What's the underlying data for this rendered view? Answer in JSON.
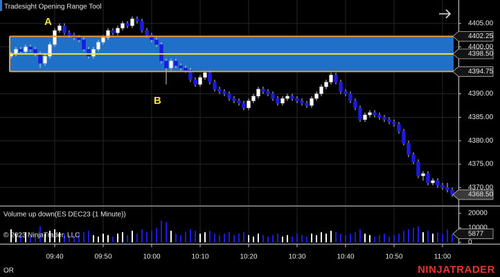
{
  "header": {
    "title": "Tradesight Opening Range Tool"
  },
  "chart_data": [
    {
      "type": "candlestick",
      "open": [
        4398,
        4398.5,
        4399.5,
        4399,
        4400,
        4399.5,
        4398.5,
        4396.5,
        4398,
        4400.5,
        4403.5,
        4404.5,
        4403,
        4402.5,
        4402,
        4401.5,
        4399.5,
        4398,
        4399.5,
        4401,
        4402,
        4403.5,
        4403,
        4404,
        4405,
        4404.5,
        4406,
        4405.5,
        4403.5,
        4402.5,
        4401.5,
        4400.5,
        4397,
        4395.5,
        4397,
        4396,
        4395.5,
        4395,
        4393,
        4392,
        4393.5,
        4394.5,
        4392.5,
        4391,
        4390.5,
        4390,
        4389,
        4388.5,
        4388,
        4387,
        4388.5,
        4389.5,
        4391,
        4390.5,
        4390,
        4389,
        4388,
        4389,
        4389.5,
        4389,
        4388.5,
        4388,
        4387.5,
        4389,
        4390,
        4391.5,
        4392.5,
        4394,
        4392.5,
        4390.5,
        4390,
        4388.5,
        4387,
        4384.5,
        4385.5,
        4386,
        4385.5,
        4385,
        4384.5,
        4384,
        4383.5,
        4382,
        4379.5,
        4377,
        4375.5,
        4372.5,
        4373,
        4371,
        4371.5,
        4370.5,
        4370,
        4369.5
      ],
      "high": [
        4399,
        4400,
        4400,
        4400.5,
        4400.5,
        4400,
        4399,
        4398.5,
        4401,
        4404,
        4405,
        4405,
        4403.5,
        4403,
        4402.5,
        4402,
        4400,
        4400,
        4401.5,
        4402.5,
        4404,
        4404,
        4404.5,
        4405.5,
        4405.5,
        4406.5,
        4406.5,
        4406,
        4404,
        4403,
        4402,
        4401,
        4397.5,
        4397.5,
        4397.5,
        4396.5,
        4396,
        4395.5,
        4393.5,
        4394,
        4395,
        4395,
        4393,
        4391.5,
        4391,
        4390.5,
        4389.5,
        4389,
        4388.5,
        4389,
        4390,
        4391.5,
        4391.5,
        4391,
        4390.5,
        4389.5,
        4389.5,
        4390,
        4390,
        4389.5,
        4389,
        4388.5,
        4389.5,
        4390.5,
        4392,
        4393,
        4394.5,
        4394.5,
        4393,
        4391,
        4390.5,
        4389,
        4387.5,
        4386,
        4386.5,
        4386.5,
        4386,
        4385.5,
        4385,
        4384.5,
        4384,
        4382.5,
        4380,
        4377.5,
        4376,
        4373.5,
        4373.5,
        4372,
        4372,
        4371,
        4371,
        4370
      ],
      "low": [
        4397.5,
        4398,
        4398.5,
        4398.5,
        4399,
        4398,
        4395.5,
        4396,
        4397.5,
        4400,
        4403,
        4402.5,
        4402,
        4401.5,
        4401,
        4399,
        4397.5,
        4397.5,
        4399,
        4400.5,
        4401.5,
        4402.5,
        4402.5,
        4403.5,
        4404,
        4404,
        4405,
        4403,
        4402,
        4401,
        4400,
        4396.5,
        4392,
        4395,
        4395.5,
        4395,
        4394.5,
        4392.5,
        4391.5,
        4391.5,
        4393,
        4392,
        4390.5,
        4390,
        4389.5,
        4388.5,
        4388,
        4387.5,
        4386.5,
        4386.5,
        4388,
        4389,
        4390,
        4389.5,
        4388.5,
        4387.5,
        4387.5,
        4388.5,
        4388.5,
        4388,
        4387.5,
        4387,
        4387,
        4388.5,
        4389.5,
        4391,
        4392,
        4392,
        4390,
        4389.5,
        4388,
        4386.5,
        4384,
        4384,
        4385,
        4385,
        4384.5,
        4384,
        4383.5,
        4383,
        4381.5,
        4379,
        4376.5,
        4375,
        4372,
        4371.5,
        4370.5,
        4370.5,
        4370,
        4369.5,
        4369,
        4368
      ],
      "close": [
        4398.5,
        4399.5,
        4399,
        4400,
        4399.5,
        4398.5,
        4396.5,
        4398,
        4400.5,
        4403.5,
        4404.5,
        4403,
        4402.5,
        4402,
        4401.5,
        4399.5,
        4398,
        4399.5,
        4401,
        4402,
        4403.5,
        4403,
        4404,
        4405,
        4404.5,
        4406,
        4405.5,
        4403.5,
        4402.5,
        4401.5,
        4400.5,
        4397,
        4395.5,
        4397,
        4396,
        4395.5,
        4395,
        4393,
        4392,
        4393.5,
        4394.5,
        4392.5,
        4391,
        4390.5,
        4390,
        4389,
        4388.5,
        4388,
        4387,
        4388.5,
        4389.5,
        4391,
        4390.5,
        4390,
        4389,
        4388,
        4389,
        4389.5,
        4389,
        4388.5,
        4388,
        4387.5,
        4389,
        4390,
        4391.5,
        4392.5,
        4394,
        4392.5,
        4390.5,
        4390,
        4388.5,
        4387,
        4384.5,
        4385.5,
        4386,
        4385.5,
        4385,
        4384.5,
        4384,
        4383.5,
        4382,
        4379.5,
        4377,
        4375.5,
        4372.5,
        4373,
        4371,
        4371.5,
        4370.5,
        4370,
        4369.5,
        4368.5
      ],
      "up_color": "#ffffff",
      "down_color": "#1a1ae0",
      "wick_color": "#cfcfcf",
      "ylim": [
        4366.15,
        4410.0
      ],
      "yticks": [
        {
          "value": 4405,
          "label": "4405.00"
        },
        {
          "value": 4400,
          "label": "4400.00"
        },
        {
          "value": 4390,
          "label": "4390.00"
        },
        {
          "value": 4385,
          "label": "4385.00"
        },
        {
          "value": 4380,
          "label": "4380.00"
        },
        {
          "value": 4375,
          "label": "4375.00"
        },
        {
          "value": 4370,
          "label": "4370.00"
        }
      ],
      "xticks": [
        {
          "value": 9,
          "label": "09:40"
        },
        {
          "value": 19,
          "label": "09:50"
        },
        {
          "value": 29,
          "label": "10:00"
        },
        {
          "value": 39,
          "label": "10:10"
        },
        {
          "value": 49,
          "label": "10:20"
        },
        {
          "value": 59,
          "label": "10:30"
        },
        {
          "value": 69,
          "label": "10:40"
        },
        {
          "value": 79,
          "label": "10:50"
        },
        {
          "value": 89,
          "label": "11:00"
        }
      ],
      "grid": true,
      "opening_range": {
        "values": [
          4402.25,
          4398.5,
          4394.75
        ],
        "value_labels": [
          "4402.25",
          "4398.50",
          "4394.75"
        ],
        "fill": "#1f70c6",
        "border": "#f39a26",
        "mid_color": "#f4e23a"
      },
      "last_price": {
        "value": 4368.5,
        "label": "4368.50"
      },
      "annotations": [
        "A",
        "B"
      ]
    },
    {
      "type": "bar",
      "title": "Volume up down(ES DEC23 (1 Minute))",
      "values": [
        9000,
        6000,
        5000,
        7000,
        4000,
        5000,
        11000,
        6000,
        8000,
        9000,
        7000,
        6000,
        5000,
        4000,
        6000,
        7000,
        8000,
        5000,
        4000,
        6000,
        5000,
        4000,
        6000,
        7000,
        5000,
        8000,
        6000,
        9000,
        7000,
        8000,
        10000,
        15000,
        14000,
        8000,
        6000,
        5000,
        7000,
        9000,
        8000,
        6000,
        7000,
        8000,
        6000,
        5000,
        6000,
        7000,
        5000,
        6000,
        7000,
        5000,
        4000,
        6000,
        5000,
        4000,
        5000,
        6000,
        4000,
        5000,
        4000,
        6000,
        5000,
        4000,
        6000,
        5000,
        7000,
        6000,
        8000,
        7000,
        6000,
        5000,
        6000,
        7000,
        9000,
        6000,
        5000,
        4000,
        5000,
        6000,
        4000,
        5000,
        6000,
        8000,
        9000,
        10000,
        11000,
        7000,
        8000,
        6000,
        7000,
        6000,
        9000,
        5877
      ],
      "ylim": [
        0,
        24800
      ],
      "yticks": [
        0,
        10000,
        20000
      ]
    }
  ],
  "copyright": "© 2023 NinjaTrader, LLC",
  "status": "OR",
  "brand": "NINJATRADER"
}
